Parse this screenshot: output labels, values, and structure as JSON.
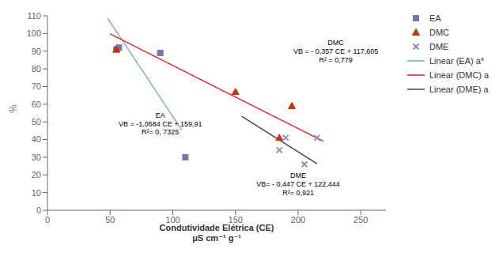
{
  "chart_data": {
    "type": "scatter",
    "xlabel": "Condutividade Elétrica (CE)\nμS cm⁻¹ g⁻¹",
    "ylabel": "%",
    "xlim": [
      0,
      270
    ],
    "ylim": [
      0,
      110
    ],
    "xticks": [
      0,
      50,
      100,
      150,
      200,
      250
    ],
    "yticks": [
      0,
      10,
      20,
      30,
      40,
      50,
      60,
      70,
      80,
      90,
      100,
      110
    ],
    "grid": false,
    "legend": "right",
    "series": [
      {
        "name": "EA",
        "type": "scatter",
        "marker": "square",
        "color": "#7777AA",
        "x": [
          55,
          57,
          90,
          110
        ],
        "values": [
          91,
          92,
          89,
          30
        ]
      },
      {
        "name": "DMC",
        "type": "scatter",
        "marker": "triangle",
        "color": "#CC3300",
        "x": [
          55,
          150,
          185,
          195
        ],
        "values": [
          91,
          67,
          41,
          59
        ]
      },
      {
        "name": "DME",
        "type": "scatter",
        "marker": "x",
        "color": "#8888BB",
        "x": [
          185,
          190,
          205,
          215
        ],
        "values": [
          34,
          41,
          26,
          41
        ]
      },
      {
        "name": "Linear (EA) a*",
        "type": "line",
        "line_style": "solid",
        "color": "#6EA6E0",
        "x": [
          48,
          107
        ],
        "values": [
          108.6268,
          45.5912
        ]
      },
      {
        "name": "Linear (DMC) a",
        "type": "line",
        "line_style": "solid",
        "color": "#E02020",
        "x": [
          50,
          220
        ],
        "values": [
          99.755,
          39.065
        ]
      },
      {
        "name": "Linear (DME) a",
        "type": "line",
        "line_style": "solid",
        "color": "#404040",
        "x": [
          155,
          215
        ],
        "values": [
          53.159,
          26.339
        ]
      }
    ],
    "annotations": [
      {
        "text": "EA\nVB = -1,0684 CE + 159,91\nR²= 0, 7325",
        "x": 90,
        "y": 56
      },
      {
        "text": "DMC\nVB = - 0,357 CE + 117,605\nR² = 0,779",
        "x": 230,
        "y": 97
      },
      {
        "text": "DME\nVB= - 0,447 CE + 122,444\nR²= 0,921",
        "x": 200,
        "y": 22
      }
    ]
  }
}
